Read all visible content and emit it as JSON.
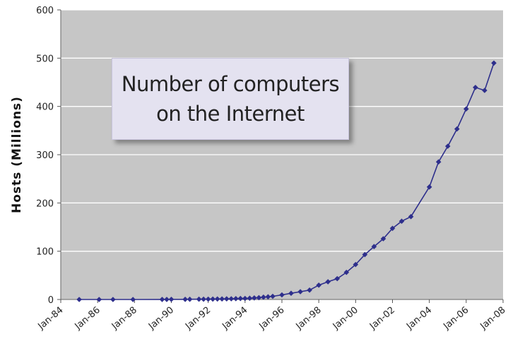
{
  "chart_data": {
    "type": "line",
    "title": "Number of computers on the Internet",
    "title_lines": [
      "Number of computers",
      "on the Internet"
    ],
    "xlabel": "",
    "ylabel": "Hosts (Millions)",
    "ylim": [
      0,
      600
    ],
    "yticks": [
      0,
      100,
      200,
      300,
      400,
      500,
      600
    ],
    "xticks": [
      "Jan-84",
      "Jan-86",
      "Jan-88",
      "Jan-90",
      "Jan-92",
      "Jan-94",
      "Jan-96",
      "Jan-98",
      "Jan-00",
      "Jan-02",
      "Jan-04",
      "Jan-06",
      "Jan-08"
    ],
    "grid": true,
    "legend": "none",
    "colors": {
      "line": "#2e2f8c",
      "plot_bg": "#c6c6c6",
      "grid": "#ffffff"
    },
    "series": [
      {
        "x": [
          "1985-01",
          "1986-02",
          "1986-11",
          "1987-12",
          "1989-07",
          "1989-10",
          "1990-01",
          "1990-10",
          "1991-01",
          "1991-07",
          "1991-10",
          "1992-01",
          "1992-04",
          "1992-07",
          "1992-10",
          "1993-01",
          "1993-04",
          "1993-07",
          "1993-10",
          "1994-01",
          "1994-04",
          "1994-07",
          "1994-10",
          "1995-01",
          "1995-04",
          "1995-07",
          "1996-01",
          "1996-07",
          "1997-01",
          "1997-07",
          "1998-01",
          "1998-07",
          "1999-01",
          "1999-07",
          "2000-01",
          "2000-07",
          "2001-01",
          "2001-07",
          "2002-01",
          "2002-07",
          "2003-01",
          "2004-01",
          "2004-07",
          "2005-01",
          "2005-07",
          "2006-01",
          "2006-07",
          "2007-01",
          "2007-07"
        ],
        "values": [
          0.001,
          0.002,
          0.005,
          0.03,
          0.13,
          0.16,
          0.31,
          0.31,
          0.38,
          0.54,
          0.62,
          0.73,
          0.89,
          0.99,
          1.14,
          1.3,
          1.49,
          1.78,
          2.06,
          2.22,
          2.6,
          3.2,
          3.86,
          4.85,
          5.5,
          6.6,
          9.5,
          12.9,
          16.1,
          19.5,
          29.7,
          36.7,
          43.2,
          56.2,
          72.4,
          93,
          109.6,
          125.9,
          147.3,
          162.1,
          171.6,
          233.1,
          285.1,
          317.6,
          353.3,
          394.9,
          439.3,
          433.2,
          489.8
        ]
      }
    ]
  }
}
